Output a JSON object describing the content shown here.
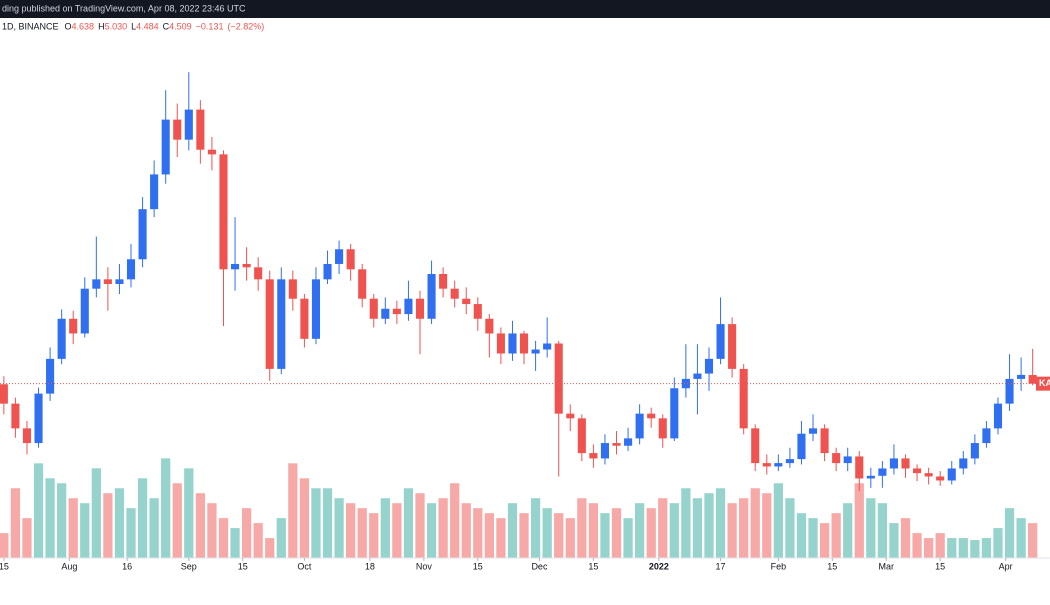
{
  "header": {
    "published": "ding published on TradingView.com, Apr 08, 2022 23:46 UTC",
    "interval": "1D, BINANCE",
    "legend": [
      {
        "key": "O",
        "value": 4.638
      },
      {
        "key": "H",
        "value": {
          "value": 5.03,
          "label": "5.030"
        }
      },
      {
        "key": "L",
        "value": 4.484
      },
      {
        "key": "C",
        "value": 4.509
      }
    ],
    "change": {
      "value": -0.131,
      "label": "−0.131"
    },
    "change_pct": {
      "value": -2.82,
      "label": "(−2.82%)"
    }
  },
  "chart_data": {
    "type": "candlestick",
    "price_label": "KA",
    "up_color": "#2f6ff0",
    "down_color": "#ef5350",
    "volume_up_color": "#95d3cc",
    "volume_down_color": "#f6a9a6",
    "x": [
      1,
      4,
      7,
      10,
      13,
      16,
      19,
      22,
      25,
      28,
      31,
      34,
      37,
      40,
      43,
      46,
      49,
      52,
      55,
      58,
      61,
      64,
      67,
      70,
      73,
      76,
      79,
      82,
      85,
      88,
      91,
      94,
      97,
      100,
      103,
      106,
      109,
      112,
      115,
      118,
      121,
      124,
      127,
      130,
      133,
      136,
      139,
      142,
      145,
      148,
      151,
      154,
      157,
      160,
      163,
      166,
      169,
      172,
      175,
      178,
      181,
      184,
      187,
      190,
      193,
      196,
      199,
      202,
      205,
      208,
      211,
      214,
      217,
      220,
      223,
      226,
      229,
      232,
      235,
      238,
      241,
      244,
      247,
      250,
      253,
      256,
      259,
      262,
      265,
      268
    ],
    "open": [
      4.5,
      4.21,
      3.84,
      3.62,
      4.36,
      4.88,
      5.48,
      5.26,
      5.93,
      6.07,
      6.0,
      6.07,
      6.37,
      7.12,
      7.64,
      8.46,
      8.16,
      8.61,
      8.01,
      7.94,
      6.22,
      6.3,
      6.25,
      6.07,
      4.73,
      6.07,
      5.78,
      5.18,
      6.07,
      6.3,
      6.52,
      6.22,
      5.78,
      5.48,
      5.63,
      5.55,
      5.78,
      5.48,
      6.15,
      5.93,
      5.78,
      5.7,
      5.48,
      5.26,
      4.96,
      5.26,
      4.96,
      5.02,
      5.11,
      4.06,
      3.99,
      3.47,
      3.39,
      3.62,
      3.58,
      3.69,
      4.06,
      3.99,
      3.69,
      4.44,
      4.58,
      4.66,
      4.88,
      5.4,
      4.73,
      3.84,
      3.32,
      3.27,
      3.32,
      3.38,
      3.76,
      3.84,
      3.47,
      3.32,
      3.42,
      3.09,
      3.13,
      3.24,
      3.39,
      3.24,
      3.17,
      3.12,
      3.06,
      3.24,
      3.39,
      3.62,
      3.84,
      4.21,
      4.58,
      4.638
    ],
    "high": [
      4.62,
      4.3,
      3.95,
      4.45,
      5.05,
      5.62,
      5.6,
      6.1,
      6.71,
      6.25,
      6.3,
      6.6,
      7.3,
      7.85,
      8.9,
      8.7,
      9.17,
      8.75,
      8.2,
      8.0,
      7.0,
      6.55,
      6.4,
      6.2,
      6.25,
      6.2,
      5.85,
      6.25,
      6.5,
      6.65,
      6.6,
      6.3,
      5.85,
      5.8,
      5.75,
      6.05,
      5.9,
      6.35,
      6.25,
      6.05,
      5.95,
      5.8,
      5.55,
      5.35,
      5.45,
      5.3,
      5.15,
      5.5,
      5.15,
      4.2,
      4.05,
      3.6,
      3.75,
      3.8,
      3.85,
      4.2,
      4.15,
      4.05,
      4.6,
      5.1,
      5.1,
      5.05,
      5.8,
      5.5,
      4.8,
      3.9,
      3.45,
      3.45,
      3.55,
      3.95,
      4.05,
      3.9,
      3.55,
      3.55,
      3.5,
      3.25,
      3.35,
      3.6,
      3.45,
      3.3,
      3.25,
      3.2,
      3.35,
      3.5,
      3.75,
      3.95,
      4.3,
      4.95,
      4.9,
      5.03
    ],
    "low": [
      4.05,
      3.7,
      3.45,
      3.55,
      4.25,
      4.8,
      5.1,
      5.2,
      5.8,
      5.6,
      5.85,
      5.95,
      6.25,
      7.0,
      7.5,
      7.9,
      8.0,
      7.8,
      7.7,
      5.37,
      5.9,
      6.05,
      5.9,
      4.55,
      4.65,
      5.6,
      5.05,
      5.1,
      6.0,
      6.15,
      6.05,
      5.65,
      5.35,
      5.4,
      5.4,
      5.45,
      4.95,
      5.4,
      5.8,
      5.65,
      5.55,
      5.3,
      4.9,
      4.8,
      4.85,
      4.8,
      4.7,
      4.9,
      3.12,
      3.8,
      3.35,
      3.25,
      3.3,
      3.45,
      3.5,
      3.6,
      3.85,
      3.55,
      3.65,
      4.3,
      4.05,
      4.4,
      4.8,
      4.6,
      3.75,
      3.2,
      3.15,
      3.2,
      3.25,
      3.3,
      3.65,
      3.35,
      3.2,
      3.2,
      2.9,
      2.95,
      2.95,
      3.15,
      3.1,
      3.05,
      3.0,
      2.98,
      3.0,
      3.15,
      3.3,
      3.55,
      3.75,
      4.1,
      4.4,
      4.484
    ],
    "close": [
      4.21,
      3.84,
      3.62,
      4.36,
      4.88,
      5.48,
      5.26,
      5.93,
      6.07,
      6.0,
      6.07,
      6.37,
      7.12,
      7.64,
      8.46,
      8.16,
      8.61,
      8.01,
      7.94,
      6.22,
      6.3,
      6.25,
      6.07,
      4.73,
      6.07,
      5.78,
      5.18,
      6.07,
      6.3,
      6.52,
      6.22,
      5.78,
      5.48,
      5.63,
      5.55,
      5.78,
      5.48,
      6.15,
      5.93,
      5.78,
      5.7,
      5.48,
      5.26,
      4.96,
      5.26,
      4.96,
      5.02,
      5.11,
      4.06,
      3.99,
      3.47,
      3.39,
      3.62,
      3.58,
      3.69,
      4.06,
      3.99,
      3.69,
      4.44,
      4.58,
      4.66,
      4.88,
      5.4,
      4.73,
      3.84,
      3.32,
      3.27,
      3.32,
      3.38,
      3.76,
      3.84,
      3.47,
      3.32,
      3.42,
      3.09,
      3.13,
      3.24,
      3.39,
      3.24,
      3.17,
      3.12,
      3.06,
      3.24,
      3.39,
      3.62,
      3.84,
      4.21,
      4.58,
      4.64,
      4.509
    ],
    "volume": [
      25,
      70,
      40,
      95,
      80,
      75,
      60,
      55,
      90,
      65,
      70,
      50,
      80,
      60,
      100,
      75,
      90,
      65,
      55,
      40,
      30,
      50,
      35,
      20,
      40,
      95,
      80,
      70,
      70,
      60,
      55,
      50,
      45,
      60,
      55,
      70,
      65,
      55,
      60,
      75,
      55,
      50,
      45,
      40,
      55,
      45,
      60,
      50,
      45,
      40,
      60,
      55,
      45,
      50,
      40,
      55,
      50,
      60,
      55,
      70,
      60,
      65,
      70,
      55,
      60,
      70,
      65,
      75,
      60,
      45,
      40,
      35,
      45,
      55,
      75,
      60,
      55,
      35,
      40,
      25,
      20,
      25,
      20,
      20,
      18,
      20,
      30,
      50,
      40,
      35
    ],
    "xlim": [
      0,
      272.5
    ],
    "ylim": [
      1.9,
      10.25
    ],
    "volume_ylim": [
      0,
      560
    ],
    "xticks": [
      {
        "value": 1,
        "label": "15"
      },
      {
        "value": 18,
        "label": "Aug"
      },
      {
        "value": 33,
        "label": "16"
      },
      {
        "value": 49,
        "label": "Sep"
      },
      {
        "value": 63,
        "label": "15"
      },
      {
        "value": 79,
        "label": "Oct"
      },
      {
        "value": 96,
        "label": "18"
      },
      {
        "value": 110,
        "label": "Nov"
      },
      {
        "value": 124,
        "label": "15"
      },
      {
        "value": 140,
        "label": "Dec"
      },
      {
        "value": 154,
        "label": "15"
      },
      {
        "value": 171,
        "label": "2022"
      },
      {
        "value": 187,
        "label": "17"
      },
      {
        "value": 202,
        "label": "Feb"
      },
      {
        "value": 216,
        "label": "15"
      },
      {
        "value": 230,
        "label": "Mar"
      },
      {
        "value": 244,
        "label": "15"
      },
      {
        "value": 261,
        "label": "Apr"
      }
    ]
  }
}
